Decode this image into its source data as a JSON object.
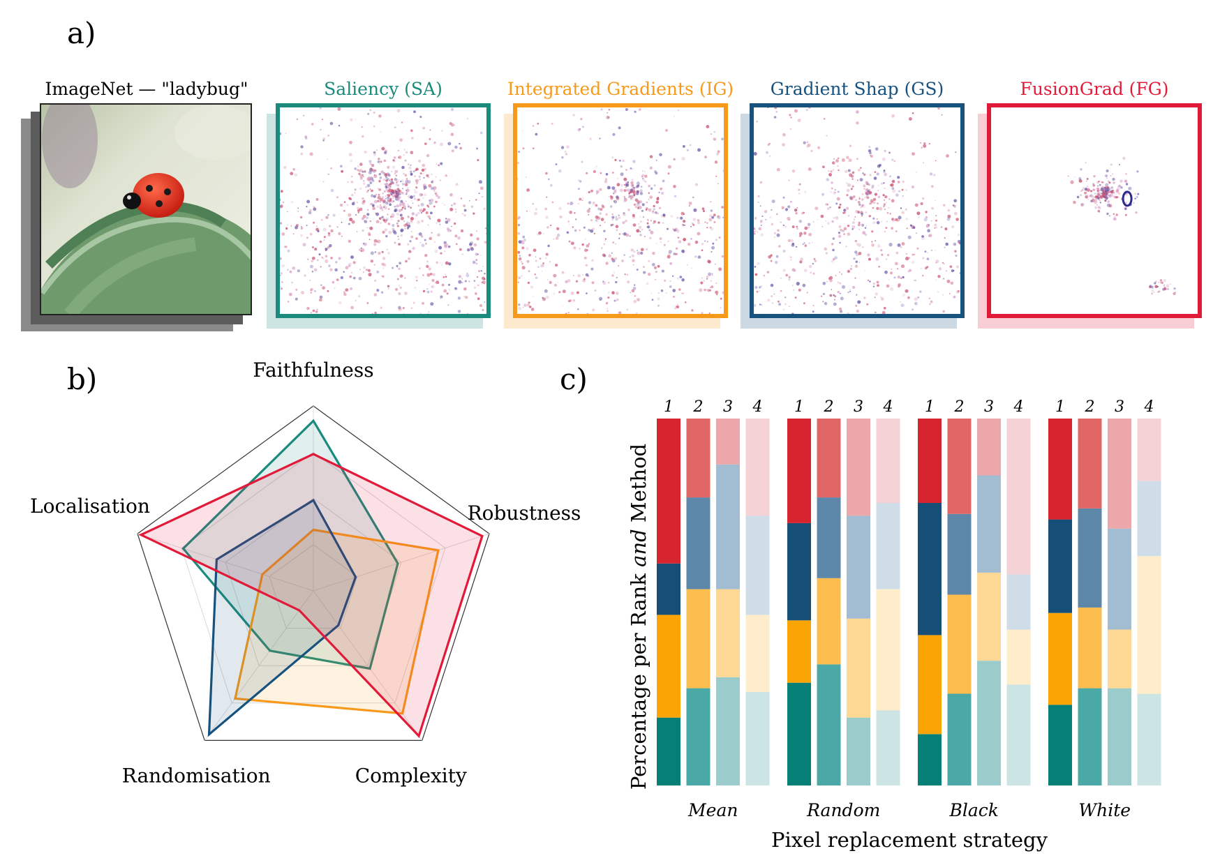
{
  "panels": {
    "a": "a)",
    "b": "b)",
    "c": "c)"
  },
  "panel_a": {
    "tiles": [
      {
        "title": "ImageNet — \"ladybug\"",
        "color": "#222222",
        "kind": "photo"
      },
      {
        "title": "Saliency (SA)",
        "color": "#1a8a7d",
        "kind": "saliency",
        "spread": "wide"
      },
      {
        "title": "Integrated Gradients (IG)",
        "color": "#f79a1b",
        "kind": "saliency",
        "spread": "medium"
      },
      {
        "title": "Gradient Shap (GS)",
        "color": "#17527f",
        "kind": "saliency",
        "spread": "medium"
      },
      {
        "title": "FusionGrad (FG)",
        "color": "#e21a3a",
        "kind": "saliency",
        "spread": "focused"
      }
    ]
  },
  "chart_data": [
    {
      "type": "radar",
      "axes": [
        "Faithfulness",
        "Robustness",
        "Complexity",
        "Randomisation",
        "Localisation"
      ],
      "range": [
        0,
        1
      ],
      "series": [
        {
          "method": "SA",
          "color": "#1a8a7d",
          "values": [
            0.92,
            0.48,
            0.52,
            0.4,
            0.74
          ]
        },
        {
          "method": "IG",
          "color": "#f79a1b",
          "values": [
            0.33,
            0.71,
            0.82,
            0.72,
            0.29
          ]
        },
        {
          "method": "GS",
          "color": "#17527f",
          "values": [
            0.49,
            0.24,
            0.23,
            0.96,
            0.55
          ]
        },
        {
          "method": "FG",
          "color": "#e21a3a",
          "values": [
            0.74,
            0.96,
            0.97,
            0.13,
            0.98
          ]
        }
      ]
    },
    {
      "type": "bar",
      "stacked": true,
      "xlabel": "Pixel replacement strategy",
      "ylabel_parts": [
        "Percentage per Rank ",
        "and",
        " Method"
      ],
      "categories": [
        "Mean",
        "Random",
        "Black",
        "White"
      ],
      "ranks": [
        "1",
        "2",
        "3",
        "4"
      ],
      "ylim": [
        0,
        100
      ],
      "stack_order_bottom_to_top": [
        "SA",
        "IG",
        "GS",
        "FG"
      ],
      "method_colors": {
        "SA": [
          "#068077",
          "#4aa8a6",
          "#9ccbcc",
          "#cde4e5"
        ],
        "IG": [
          "#fba405",
          "#fcbd4f",
          "#fdd894",
          "#feecca"
        ],
        "GS": [
          "#154e76",
          "#5c87a8",
          "#a2bcd1",
          "#cfdde9"
        ],
        "FG": [
          "#d6252f",
          "#e06766",
          "#eba7aa",
          "#f5d2d6"
        ]
      },
      "groups": [
        {
          "category": "Mean",
          "ranks": [
            {
              "SA": 18.5,
              "IG": 28,
              "GS": 14,
              "FG": 39.5
            },
            {
              "SA": 26.5,
              "IG": 27,
              "GS": 25,
              "FG": 21.5
            },
            {
              "SA": 29.5,
              "IG": 24,
              "GS": 34,
              "FG": 12.5
            },
            {
              "SA": 25.5,
              "IG": 21,
              "GS": 27,
              "FG": 26.5
            }
          ]
        },
        {
          "category": "Random",
          "ranks": [
            {
              "SA": 28,
              "IG": 17,
              "GS": 26.5,
              "FG": 28.5
            },
            {
              "SA": 33,
              "IG": 23.5,
              "GS": 22,
              "FG": 21.5
            },
            {
              "SA": 18.5,
              "IG": 27,
              "GS": 28,
              "FG": 26.5
            },
            {
              "SA": 20.5,
              "IG": 33,
              "GS": 23.5,
              "FG": 23
            }
          ]
        },
        {
          "category": "Black",
          "ranks": [
            {
              "SA": 14,
              "IG": 27,
              "GS": 36,
              "FG": 23
            },
            {
              "SA": 25,
              "IG": 27,
              "GS": 22,
              "FG": 26
            },
            {
              "SA": 34,
              "IG": 24,
              "GS": 26.5,
              "FG": 15.5
            },
            {
              "SA": 27.5,
              "IG": 15,
              "GS": 15,
              "FG": 42.5
            }
          ]
        },
        {
          "category": "White",
          "ranks": [
            {
              "SA": 22,
              "IG": 25,
              "GS": 25.5,
              "FG": 27.5
            },
            {
              "SA": 26.5,
              "IG": 22,
              "GS": 27,
              "FG": 24.5
            },
            {
              "SA": 26.5,
              "IG": 16,
              "GS": 27.5,
              "FG": 30
            },
            {
              "SA": 25,
              "IG": 37.5,
              "GS": 20.5,
              "FG": 17
            }
          ]
        }
      ]
    }
  ]
}
